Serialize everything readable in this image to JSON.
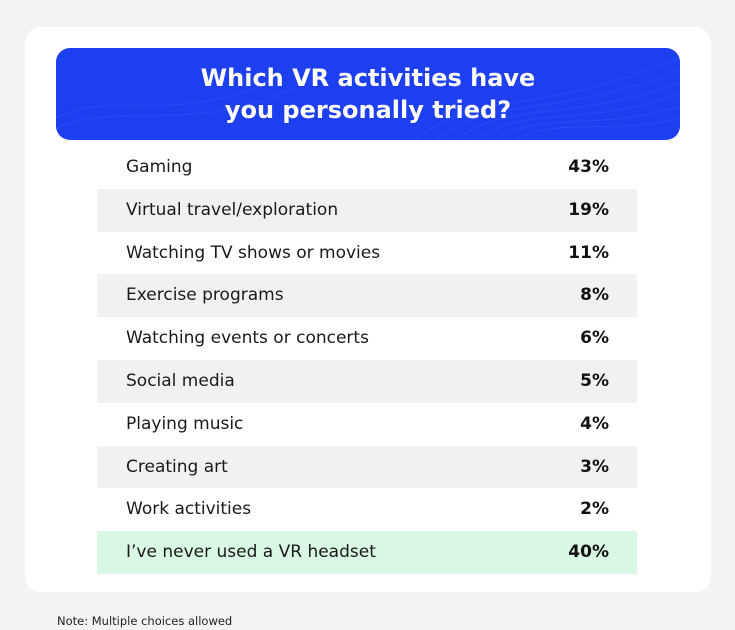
{
  "chart_data": {
    "type": "table",
    "title": "Which VR activities have\nyou personally tried?",
    "rows": [
      {
        "label": "Gaming",
        "value": 43,
        "display": "43%"
      },
      {
        "label": "Virtual travel/exploration",
        "value": 19,
        "display": "19%"
      },
      {
        "label": "Watching TV shows or movies",
        "value": 11,
        "display": "11%"
      },
      {
        "label": "Exercise programs",
        "value": 8,
        "display": "8%"
      },
      {
        "label": "Watching events or concerts",
        "value": 6,
        "display": "6%"
      },
      {
        "label": "Social media",
        "value": 5,
        "display": "5%"
      },
      {
        "label": "Playing music",
        "value": 4,
        "display": "4%"
      },
      {
        "label": "Creating art",
        "value": 3,
        "display": "3%"
      },
      {
        "label": "Work activities",
        "value": 2,
        "display": "2%"
      },
      {
        "label": "I’ve never used a VR headset",
        "value": 40,
        "display": "40%"
      }
    ],
    "note": "Note: Multiple choices allowed"
  },
  "colors": {
    "header_background": "#1e3ff0",
    "row_shade": "#f1f1f1",
    "highlight_row": "#d8f8e3",
    "card_background": "#ffffff",
    "page_background": "#f3f3f3"
  }
}
